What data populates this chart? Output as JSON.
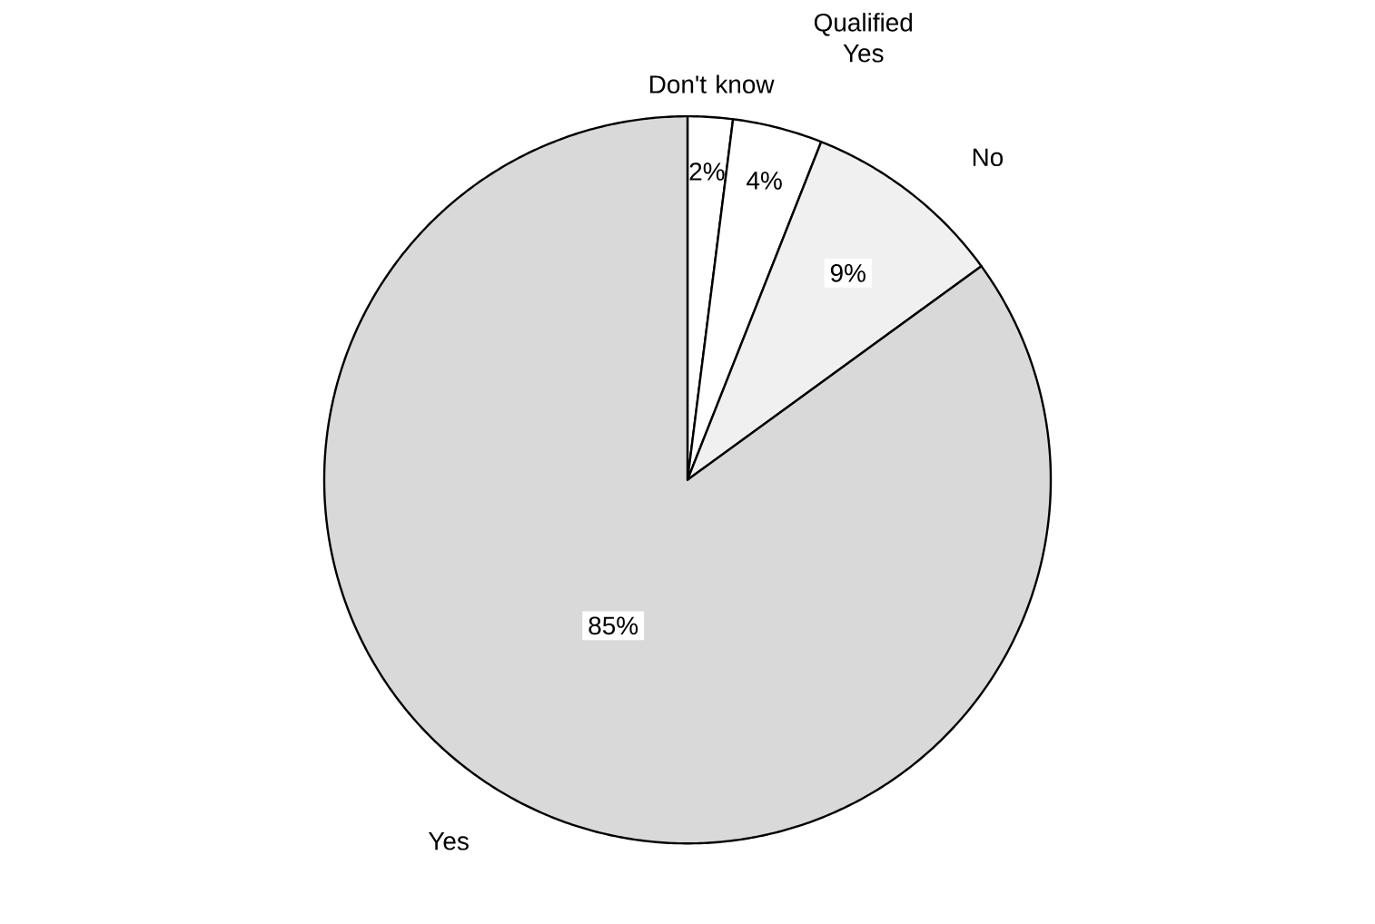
{
  "chart_data": {
    "type": "pie",
    "categories": [
      "Don't know",
      "Qualified Yes",
      "No",
      "Yes"
    ],
    "values": [
      2,
      4,
      9,
      85
    ],
    "value_labels": [
      "2%",
      "4%",
      "9%",
      "85%"
    ],
    "colors": [
      "#ffffff",
      "#ffffff",
      "#f0f0f0",
      "#d9d9d9"
    ]
  }
}
